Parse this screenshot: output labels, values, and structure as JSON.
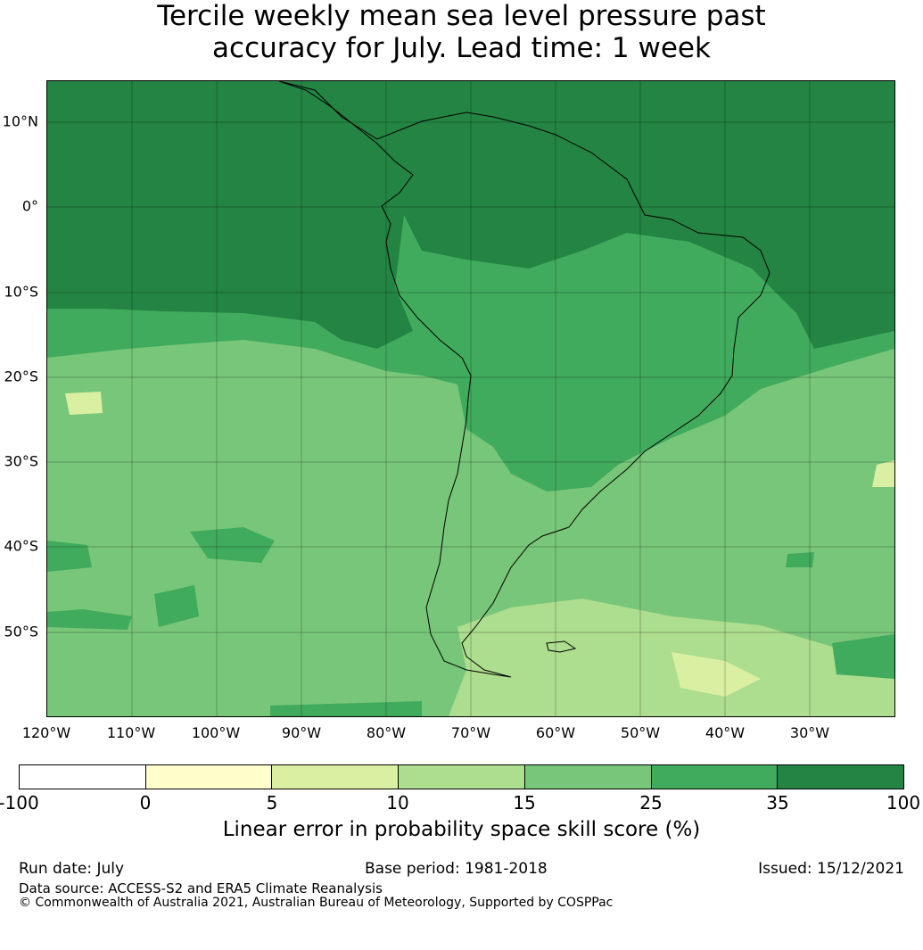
{
  "title_line1": "Tercile weekly mean sea level pressure past",
  "title_line2": "accuracy for July. Lead time: 1 week",
  "map": {
    "lat_labels": [
      "10°N",
      "0°",
      "10°S",
      "20°S",
      "30°S",
      "40°S",
      "50°S"
    ],
    "lon_labels": [
      "120°W",
      "110°W",
      "100°W",
      "90°W",
      "80°W",
      "70°W",
      "60°W",
      "50°W",
      "40°W",
      "30°W"
    ]
  },
  "colorbar": {
    "colors": [
      "#ffffff",
      "#ffffcc",
      "#d9f0a3",
      "#addd8e",
      "#78c679",
      "#41ab5d",
      "#238443"
    ],
    "ticks": [
      "-100",
      "0",
      "5",
      "10",
      "15",
      "25",
      "35",
      "100"
    ],
    "label": "Linear error in probability space skill score (%)"
  },
  "footer": {
    "run_date": "Run date: July",
    "base_period": "Base period: 1981-2018",
    "issued": "Issued: 15/12/2021",
    "data_source": "Data source: ACCESS-S2 and ERA5 Climate Reanalysis",
    "copyright": "© Commonwealth of Australia 2021, Australian Bureau of Meteorology, Supported by COSPPac"
  }
}
